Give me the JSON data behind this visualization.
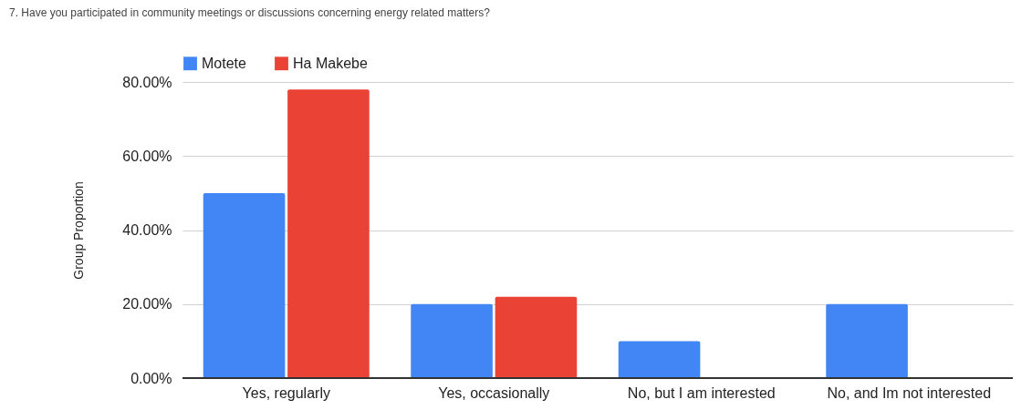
{
  "chart_data": {
    "type": "bar",
    "title": "7. Have you participated in community meetings or discussions concerning energy related matters?",
    "ylabel": "Group Proportion",
    "categories": [
      "Yes, regularly",
      "Yes, occasionally",
      "No, but I am interested",
      "No, and Im not interested"
    ],
    "series": [
      {
        "name": "Motete",
        "color": "#4285f4",
        "values": [
          50,
          20,
          10,
          20
        ]
      },
      {
        "name": "Ha Makebe",
        "color": "#ea4335",
        "values": [
          78,
          22,
          0,
          0
        ]
      }
    ],
    "ylim": [
      0,
      80
    ],
    "yticks": [
      {
        "value": 0,
        "label": "0.00%"
      },
      {
        "value": 20,
        "label": "20.00%"
      },
      {
        "value": 40,
        "label": "40.00%"
      },
      {
        "value": 60,
        "label": "60.00%"
      },
      {
        "value": 80,
        "label": "80.00%"
      }
    ],
    "grid": "y",
    "legend": "top"
  }
}
